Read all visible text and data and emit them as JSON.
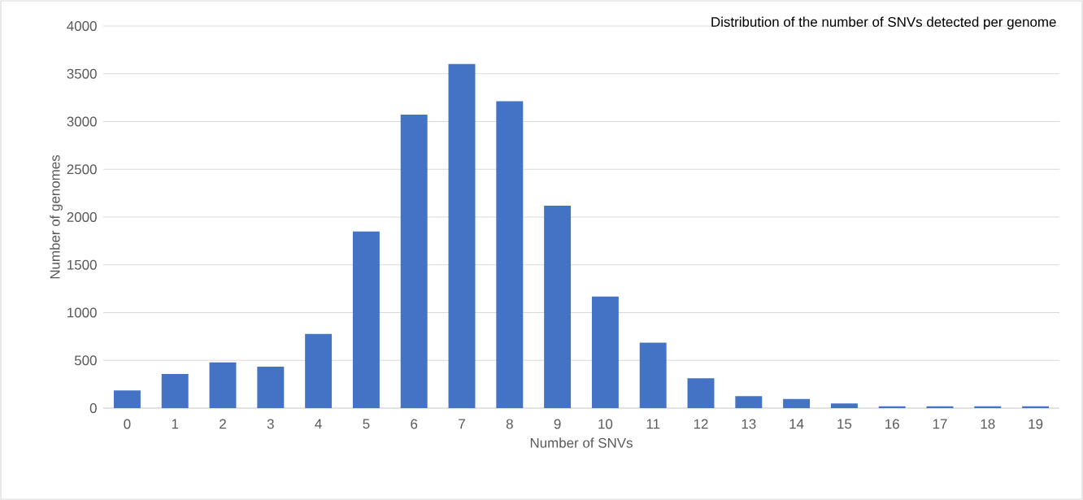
{
  "chart_data": {
    "type": "bar",
    "title": "Distribution of the number of SNVs detected per genome",
    "xlabel": "Number of SNVs",
    "ylabel": "Number of genomes",
    "categories": [
      "0",
      "1",
      "2",
      "3",
      "4",
      "5",
      "6",
      "7",
      "8",
      "9",
      "10",
      "11",
      "12",
      "13",
      "14",
      "15",
      "16",
      "17",
      "18",
      "19"
    ],
    "values": [
      186,
      357,
      479,
      433,
      776,
      1848,
      3072,
      3601,
      3213,
      2119,
      1169,
      686,
      312,
      126,
      96,
      48,
      20,
      20,
      20,
      20
    ],
    "color": "#4472c4",
    "ylim": [
      0,
      4000
    ],
    "yticks": [
      0,
      500,
      1000,
      1500,
      2000,
      2500,
      3000,
      3500,
      4000
    ],
    "grid": "y"
  }
}
